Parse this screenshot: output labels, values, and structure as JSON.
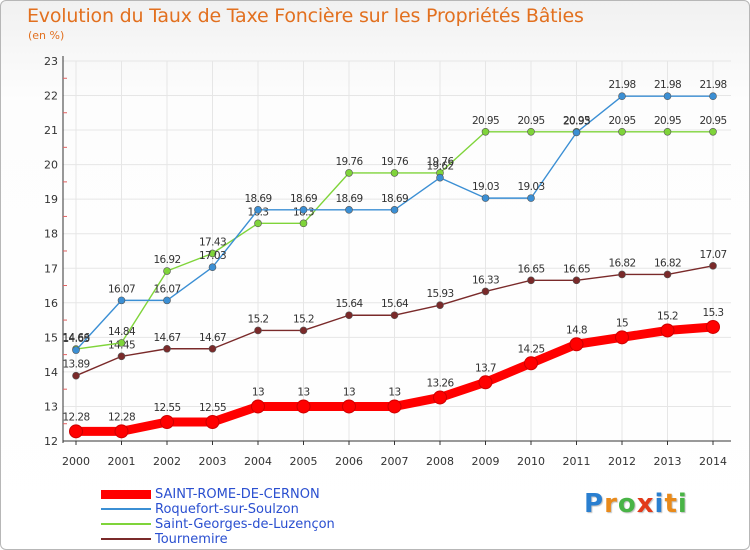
{
  "header": {
    "title": "Evolution du Taux de Taxe Foncière sur les Propriétés Bâties",
    "subtitle": "(en %)"
  },
  "logo": {
    "text": "Proxiti",
    "letters": [
      "P",
      "r",
      "o",
      "x",
      "i",
      "t",
      "i"
    ],
    "colors": [
      "#2a7fd0",
      "#e98a1a",
      "#49b446",
      "#e23a1a",
      "#2a7fd0",
      "#e98a1a",
      "#49b446"
    ]
  },
  "chart_data": {
    "type": "line",
    "title": "Evolution du Taux de Taxe Foncière sur les Propriétés Bâties",
    "ylabel": "(en %)",
    "xlabel": "",
    "x": [
      "2000",
      "2001",
      "2002",
      "2003",
      "2004",
      "2005",
      "2006",
      "2007",
      "2008",
      "2009",
      "2010",
      "2011",
      "2012",
      "2013",
      "2014"
    ],
    "yticks": [
      "12",
      "13",
      "14",
      "15",
      "16",
      "17",
      "18",
      "19",
      "20",
      "21",
      "22",
      "23"
    ],
    "ylim": [
      12,
      23
    ],
    "grid": true,
    "legend_position": "bottom-left",
    "series": [
      {
        "name": "SAINT-ROME-DE-CERNON",
        "color": "#ff0000",
        "values": [
          12.28,
          12.28,
          12.55,
          12.55,
          13,
          13,
          13,
          13,
          13.26,
          13.7,
          14.25,
          14.8,
          15,
          15.2,
          15.3
        ],
        "labels": [
          "12.28",
          "12.28",
          "12.55",
          "12.55",
          "13",
          "13",
          "13",
          "13",
          "13.26",
          "13.7",
          "14.25",
          "14.8",
          "15",
          "15.2",
          "15.3"
        ]
      },
      {
        "name": "Roquefort-sur-Soulzon",
        "color": "#3b8fd4",
        "values": [
          14.63,
          16.07,
          16.07,
          17.03,
          18.69,
          18.69,
          18.69,
          18.69,
          19.62,
          19.03,
          19.03,
          20.93,
          21.98,
          21.98,
          21.98
        ],
        "labels": [
          "14.63",
          "16.07",
          "16.07",
          "17.03",
          "18.69",
          "18.69",
          "18.69",
          "18.69",
          "19.62",
          "19.03",
          "19.03",
          "20.93",
          "21.98",
          "21.98",
          "21.98"
        ]
      },
      {
        "name": "Saint-Georges-de-Luzençon",
        "color": "#7fd43a",
        "values": [
          14.66,
          14.84,
          16.92,
          17.43,
          18.3,
          18.3,
          19.76,
          19.76,
          19.76,
          20.95,
          20.95,
          20.95,
          20.95,
          20.95,
          20.95
        ],
        "labels": [
          "14.66",
          "14.84",
          "16.92",
          "17.43",
          "18.3",
          "18.3",
          "19.76",
          "19.76",
          "19.76",
          "20.95",
          "20.95",
          "20.95",
          "20.95",
          "20.95",
          "20.95"
        ]
      },
      {
        "name": "Tournemire",
        "color": "#7a2a2a",
        "values": [
          13.89,
          14.45,
          14.67,
          14.67,
          15.2,
          15.2,
          15.64,
          15.64,
          15.93,
          16.33,
          16.65,
          16.65,
          16.82,
          16.82,
          17.07
        ],
        "labels": [
          "13.89",
          "14.45",
          "14.67",
          "14.67",
          "15.2",
          "15.2",
          "15.64",
          "15.64",
          "15.93",
          "16.33",
          "16.65",
          "16.65",
          "16.82",
          "16.82",
          "17.07"
        ]
      }
    ]
  }
}
